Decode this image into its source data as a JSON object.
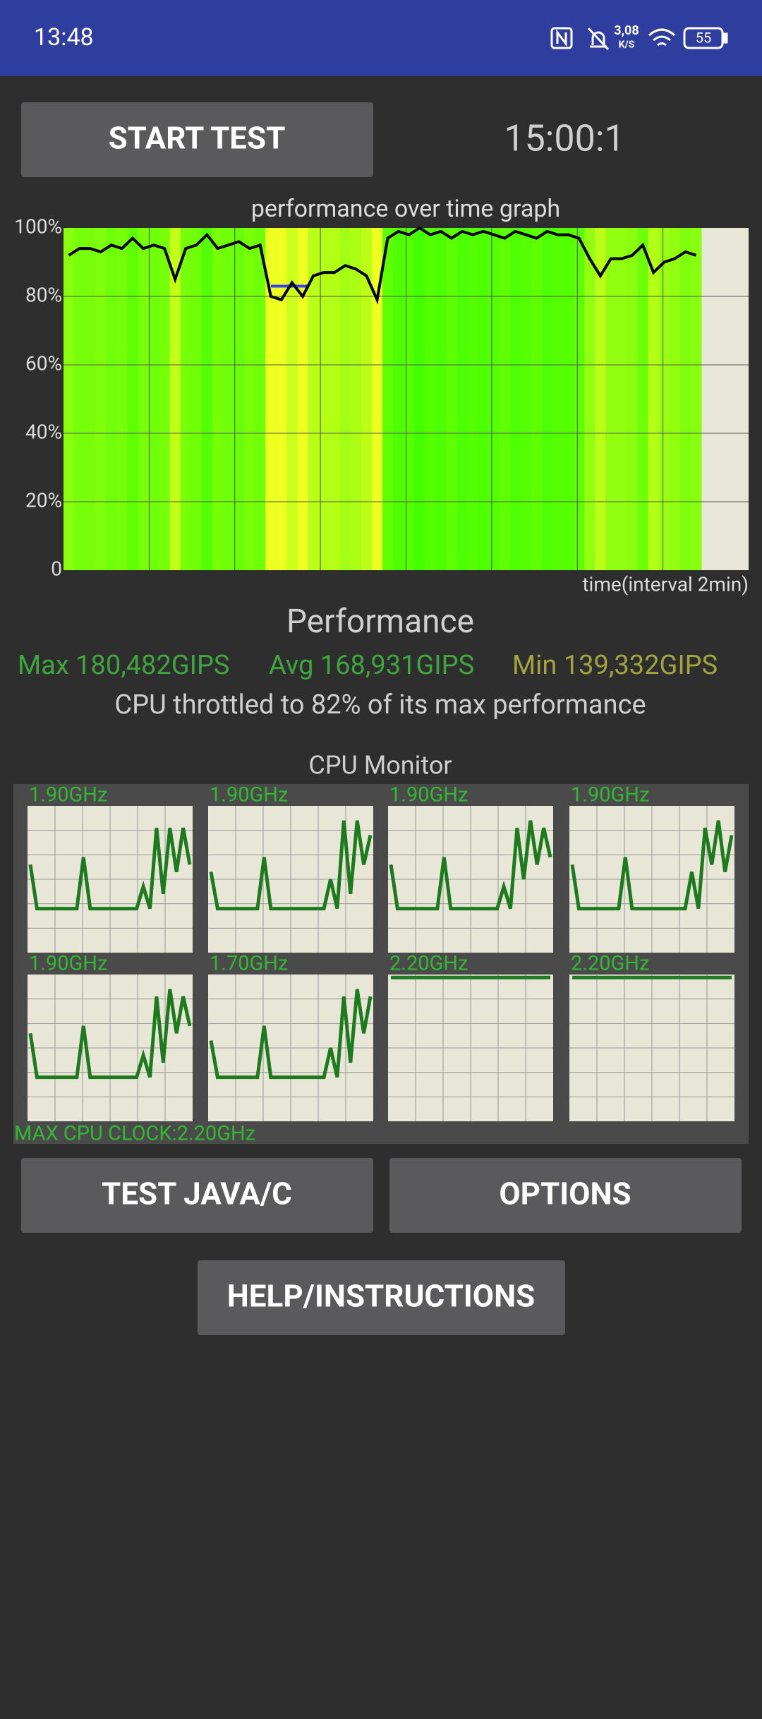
{
  "status_bar": {
    "time": "13:48",
    "net_speed": "3,08",
    "net_unit": "K/S",
    "battery": "55"
  },
  "buttons": {
    "start": "START TEST",
    "java": "TEST JAVA/C",
    "options": "OPTIONS",
    "help": "HELP/INSTRUCTIONS"
  },
  "timer": "15:00:1",
  "graph": {
    "title": "performance over time graph",
    "y_labels": [
      "100%",
      "80%",
      "60%",
      "40%",
      "20%",
      "0"
    ],
    "x_label": "time(interval 2min)",
    "values": [
      92,
      94,
      94,
      93,
      95,
      94,
      97,
      94,
      95,
      94,
      85,
      94,
      95,
      98,
      94,
      95,
      96,
      94,
      95,
      80,
      79,
      84,
      80,
      86,
      87,
      87,
      89,
      88,
      86,
      79,
      97,
      99,
      98,
      100,
      98,
      99,
      97,
      99,
      98,
      99,
      98,
      97,
      99,
      98,
      97,
      99,
      98,
      98,
      97,
      91,
      86,
      91,
      91,
      92,
      95,
      87,
      90,
      91,
      93,
      92
    ]
  },
  "performance": {
    "title": "Performance",
    "max": "Max 180,482GIPS",
    "avg": "Avg 168,931GIPS",
    "min": "Min 139,332GIPS",
    "throttle": "CPU throttled to 82% of its max performance"
  },
  "cpu_monitor": {
    "title": "CPU Monitor",
    "max_clock": "MAX CPU CLOCK:2.20GHz",
    "cores": [
      {
        "clock": "1.90GHz",
        "values": [
          60,
          30,
          30,
          30,
          30,
          30,
          30,
          30,
          65,
          30,
          30,
          30,
          30,
          30,
          30,
          30,
          30,
          45,
          30,
          85,
          40,
          85,
          55,
          85,
          60
        ]
      },
      {
        "clock": "1.90GHz",
        "values": [
          55,
          30,
          30,
          30,
          30,
          30,
          30,
          30,
          65,
          30,
          30,
          30,
          30,
          30,
          30,
          30,
          30,
          30,
          50,
          30,
          90,
          40,
          90,
          60,
          80
        ]
      },
      {
        "clock": "1.90GHz",
        "values": [
          60,
          30,
          30,
          30,
          30,
          30,
          30,
          30,
          65,
          30,
          30,
          30,
          30,
          30,
          30,
          30,
          30,
          45,
          30,
          85,
          50,
          90,
          60,
          85,
          65
        ]
      },
      {
        "clock": "1.90GHz",
        "values": [
          60,
          30,
          30,
          30,
          30,
          30,
          30,
          30,
          65,
          30,
          30,
          30,
          30,
          30,
          30,
          30,
          30,
          30,
          55,
          30,
          85,
          60,
          90,
          55,
          80
        ]
      },
      {
        "clock": "1.90GHz",
        "values": [
          60,
          30,
          30,
          30,
          30,
          30,
          30,
          30,
          65,
          30,
          30,
          30,
          30,
          30,
          30,
          30,
          30,
          45,
          30,
          85,
          40,
          90,
          60,
          85,
          65
        ]
      },
      {
        "clock": "1.70GHz",
        "values": [
          55,
          30,
          30,
          30,
          30,
          30,
          30,
          30,
          65,
          30,
          30,
          30,
          30,
          30,
          30,
          30,
          30,
          30,
          50,
          30,
          85,
          40,
          90,
          60,
          85
        ]
      },
      {
        "clock": "2.20GHz",
        "values": [
          98,
          98
        ]
      },
      {
        "clock": "2.20GHz",
        "values": [
          98,
          98
        ]
      }
    ]
  }
}
